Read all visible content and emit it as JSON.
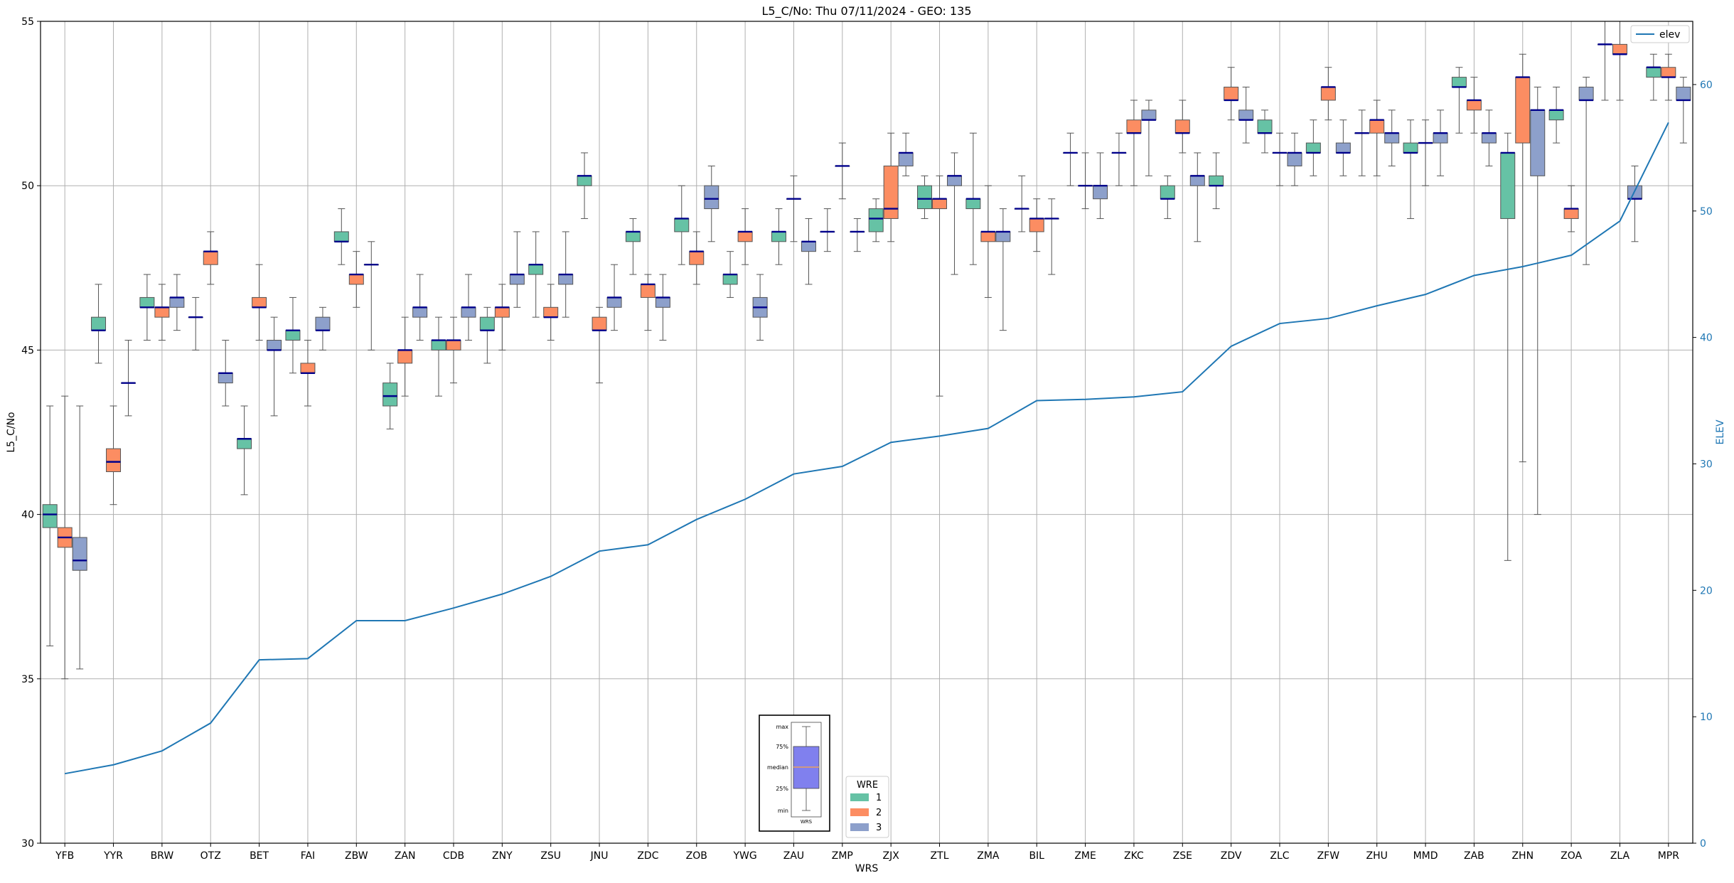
{
  "chart_data": {
    "type": "box",
    "title": "L5_C/No: Thu 07/11/2024 - GEO: 135",
    "xlabel": "WRS",
    "ylabel": "L5_C/No",
    "y2label": "ELEV",
    "ylim": [
      30,
      55
    ],
    "y2lim": [
      0,
      65
    ],
    "yticks": [
      30,
      35,
      40,
      45,
      50,
      55
    ],
    "y2ticks": [
      0,
      10,
      20,
      30,
      40,
      50,
      60
    ],
    "grid": true,
    "categories": [
      "YFB",
      "YYR",
      "BRW",
      "OTZ",
      "BET",
      "FAI",
      "ZBW",
      "ZAN",
      "CDB",
      "ZNY",
      "ZSU",
      "JNU",
      "ZDC",
      "ZOB",
      "YWG",
      "ZAU",
      "ZMP",
      "ZJX",
      "ZTL",
      "ZMA",
      "BIL",
      "ZME",
      "ZKC",
      "ZSE",
      "ZDV",
      "ZLC",
      "ZFW",
      "ZHU",
      "MMD",
      "ZAB",
      "ZHN",
      "ZOA",
      "ZLA",
      "MPR"
    ],
    "series": [
      {
        "name": "1",
        "color": "#66c2a5",
        "boxes": [
          [
            36.0,
            39.6,
            40.0,
            40.3,
            43.3
          ],
          [
            44.6,
            45.6,
            45.6,
            46.0,
            47.0
          ],
          [
            45.3,
            46.3,
            46.3,
            46.6,
            47.3
          ],
          [
            45.0,
            46.0,
            46.0,
            46.0,
            46.6
          ],
          [
            40.6,
            42.0,
            42.3,
            42.3,
            43.3
          ],
          [
            44.3,
            45.3,
            45.6,
            45.6,
            46.6
          ],
          [
            47.6,
            48.3,
            48.3,
            48.6,
            49.3
          ],
          [
            42.6,
            43.3,
            43.6,
            44.0,
            44.6
          ],
          [
            43.6,
            45.0,
            45.3,
            45.3,
            46.0
          ],
          [
            44.6,
            45.6,
            45.6,
            46.0,
            46.3
          ],
          [
            46.0,
            47.3,
            47.6,
            47.6,
            48.6
          ],
          [
            49.0,
            50.0,
            50.3,
            50.3,
            51.0
          ],
          [
            47.3,
            48.3,
            48.6,
            48.6,
            49.0
          ],
          [
            47.6,
            48.6,
            49.0,
            49.0,
            50.0
          ],
          [
            46.6,
            47.0,
            47.3,
            47.3,
            48.0
          ],
          [
            47.6,
            48.3,
            48.6,
            48.6,
            49.3
          ],
          [
            48.0,
            48.6,
            48.6,
            48.6,
            49.3
          ],
          [
            48.3,
            48.6,
            49.0,
            49.3,
            49.6
          ],
          [
            49.0,
            49.3,
            49.6,
            50.0,
            50.3
          ],
          [
            47.6,
            49.3,
            49.6,
            49.6,
            51.6
          ],
          [
            48.6,
            49.3,
            49.3,
            49.3,
            50.3
          ],
          [
            50.0,
            51.0,
            51.0,
            51.0,
            51.6
          ],
          [
            50.0,
            51.0,
            51.0,
            51.0,
            51.6
          ],
          [
            49.0,
            49.6,
            49.6,
            50.0,
            50.3
          ],
          [
            49.3,
            50.0,
            50.0,
            50.3,
            51.0
          ],
          [
            51.0,
            51.6,
            51.6,
            52.0,
            52.3
          ],
          [
            50.3,
            51.0,
            51.0,
            51.3,
            52.0
          ],
          [
            50.3,
            51.6,
            51.6,
            51.6,
            52.3
          ],
          [
            49.0,
            51.0,
            51.0,
            51.3,
            52.0
          ],
          [
            51.6,
            53.0,
            53.0,
            53.3,
            53.6
          ],
          [
            38.6,
            49.0,
            51.0,
            51.0,
            51.6
          ],
          [
            51.3,
            52.0,
            52.3,
            52.3,
            53.0
          ],
          [
            52.6,
            54.3,
            54.3,
            54.3,
            55.0
          ],
          [
            52.6,
            53.3,
            53.6,
            53.6,
            54.0
          ]
        ]
      },
      {
        "name": "2",
        "color": "#fc8d62",
        "boxes": [
          [
            35.0,
            39.0,
            39.3,
            39.6,
            43.6
          ],
          [
            40.3,
            41.3,
            41.6,
            42.0,
            43.3
          ],
          [
            45.3,
            46.0,
            46.3,
            46.3,
            47.0
          ],
          [
            47.0,
            47.6,
            48.0,
            48.0,
            48.6
          ],
          [
            45.3,
            46.3,
            46.3,
            46.6,
            47.6
          ],
          [
            43.3,
            44.3,
            44.3,
            44.6,
            45.3
          ],
          [
            46.3,
            47.0,
            47.3,
            47.3,
            48.0
          ],
          [
            43.6,
            44.6,
            45.0,
            45.0,
            46.0
          ],
          [
            44.0,
            45.0,
            45.3,
            45.3,
            46.0
          ],
          [
            45.0,
            46.0,
            46.3,
            46.3,
            47.0
          ],
          [
            45.3,
            46.0,
            46.0,
            46.3,
            47.0
          ],
          [
            44.0,
            45.6,
            45.6,
            46.0,
            46.3
          ],
          [
            45.6,
            46.6,
            47.0,
            47.0,
            47.3
          ],
          [
            47.0,
            47.6,
            48.0,
            48.0,
            48.6
          ],
          [
            47.6,
            48.3,
            48.6,
            48.6,
            49.3
          ],
          [
            48.3,
            49.6,
            49.6,
            49.6,
            50.3
          ],
          [
            49.6,
            50.6,
            50.6,
            50.6,
            51.3
          ],
          [
            48.3,
            49.0,
            49.3,
            50.6,
            51.6
          ],
          [
            43.6,
            49.3,
            49.6,
            49.6,
            50.3
          ],
          [
            46.6,
            48.3,
            48.6,
            48.6,
            50.0
          ],
          [
            48.0,
            48.6,
            49.0,
            49.0,
            49.6
          ],
          [
            49.3,
            50.0,
            50.0,
            50.0,
            51.0
          ],
          [
            50.0,
            51.6,
            51.6,
            52.0,
            52.6
          ],
          [
            51.0,
            51.6,
            51.6,
            52.0,
            52.6
          ],
          [
            52.0,
            52.6,
            52.6,
            53.0,
            53.6
          ],
          [
            50.0,
            51.0,
            51.0,
            51.0,
            51.6
          ],
          [
            52.0,
            52.6,
            53.0,
            53.0,
            53.6
          ],
          [
            50.3,
            51.6,
            52.0,
            52.0,
            52.6
          ],
          [
            50.0,
            51.3,
            51.3,
            51.3,
            52.0
          ],
          [
            51.6,
            52.3,
            52.6,
            52.6,
            53.3
          ],
          [
            41.6,
            51.3,
            53.3,
            53.3,
            54.0
          ],
          [
            48.6,
            49.0,
            49.3,
            49.3,
            50.0
          ],
          [
            52.6,
            54.0,
            54.0,
            54.3,
            55.0
          ],
          [
            52.6,
            53.3,
            53.3,
            53.6,
            54.0
          ]
        ]
      },
      {
        "name": "3",
        "color": "#8da0cb",
        "boxes": [
          [
            35.3,
            38.3,
            38.6,
            39.3,
            43.3
          ],
          [
            43.0,
            44.0,
            44.0,
            44.0,
            45.3
          ],
          [
            45.6,
            46.3,
            46.6,
            46.6,
            47.3
          ],
          [
            43.3,
            44.0,
            44.3,
            44.3,
            45.3
          ],
          [
            43.0,
            45.0,
            45.0,
            45.3,
            46.0
          ],
          [
            45.0,
            45.6,
            45.6,
            46.0,
            46.3
          ],
          [
            45.0,
            47.6,
            47.6,
            47.6,
            48.3
          ],
          [
            45.3,
            46.0,
            46.3,
            46.3,
            47.3
          ],
          [
            45.3,
            46.0,
            46.3,
            46.3,
            47.3
          ],
          [
            46.3,
            47.0,
            47.3,
            47.3,
            48.6
          ],
          [
            46.0,
            47.0,
            47.3,
            47.3,
            48.6
          ],
          [
            45.6,
            46.3,
            46.6,
            46.6,
            47.6
          ],
          [
            45.3,
            46.3,
            46.6,
            46.6,
            47.3
          ],
          [
            48.3,
            49.3,
            49.6,
            50.0,
            50.6
          ],
          [
            45.3,
            46.0,
            46.3,
            46.6,
            47.3
          ],
          [
            47.0,
            48.0,
            48.3,
            48.3,
            49.0
          ],
          [
            48.0,
            48.6,
            48.6,
            48.6,
            49.0
          ],
          [
            50.3,
            50.6,
            51.0,
            51.0,
            51.6
          ],
          [
            47.3,
            50.0,
            50.3,
            50.3,
            51.0
          ],
          [
            45.6,
            48.3,
            48.6,
            48.6,
            49.3
          ],
          [
            47.3,
            49.0,
            49.0,
            49.0,
            49.6
          ],
          [
            49.0,
            49.6,
            50.0,
            50.0,
            51.0
          ],
          [
            50.3,
            52.0,
            52.0,
            52.3,
            52.6
          ],
          [
            48.3,
            50.0,
            50.3,
            50.3,
            51.0
          ],
          [
            51.3,
            52.0,
            52.0,
            52.3,
            53.0
          ],
          [
            50.0,
            50.6,
            51.0,
            51.0,
            51.6
          ],
          [
            50.3,
            51.0,
            51.0,
            51.3,
            52.0
          ],
          [
            50.6,
            51.3,
            51.6,
            51.6,
            52.3
          ],
          [
            50.3,
            51.3,
            51.6,
            51.6,
            52.3
          ],
          [
            50.6,
            51.3,
            51.6,
            51.6,
            52.3
          ],
          [
            40.0,
            50.3,
            52.3,
            52.3,
            53.0
          ],
          [
            47.6,
            52.6,
            52.6,
            53.0,
            53.3
          ],
          [
            48.3,
            49.6,
            49.6,
            50.0,
            50.6
          ],
          [
            51.3,
            52.6,
            52.6,
            53.0,
            53.3
          ]
        ]
      }
    ],
    "elev": {
      "name": "elev",
      "color": "#1f77b4",
      "values": [
        5.5,
        6.2,
        7.3,
        9.5,
        14.5,
        14.6,
        17.6,
        17.6,
        18.6,
        19.7,
        21.1,
        23.1,
        23.6,
        25.6,
        27.2,
        29.2,
        29.8,
        31.7,
        32.2,
        32.8,
        35.0,
        35.1,
        35.3,
        35.7,
        39.3,
        41.1,
        41.5,
        42.5,
        43.4,
        44.9,
        45.6,
        46.5,
        49.2,
        57.0
      ]
    },
    "legend_elev": {
      "label": "elev",
      "position": "top-right"
    },
    "legend_wre": {
      "title": "WRE",
      "position": "lower-center",
      "entries": [
        "1",
        "2",
        "3"
      ]
    },
    "key_box": {
      "position": "lower-center",
      "labels": [
        "max",
        "75%",
        "median",
        "25%",
        "min"
      ],
      "xlabel": "WRS"
    }
  }
}
